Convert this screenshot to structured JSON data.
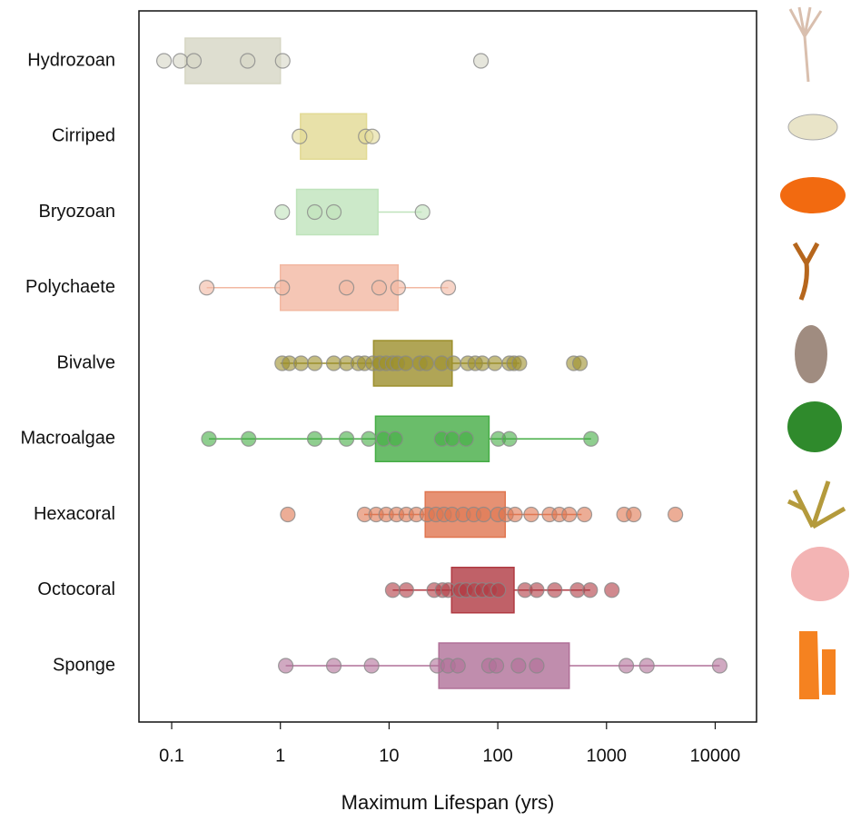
{
  "chart_data": {
    "type": "boxplot",
    "xlabel": "Maximum Lifespan (yrs)",
    "xscale": "log",
    "xlim": [
      0.05,
      24000
    ],
    "xticks": [
      0.1,
      1,
      10,
      100,
      1000,
      10000
    ],
    "categories": [
      "Hydrozoan",
      "Cirriped",
      "Bryozoan",
      "Polychaete",
      "Bivalve",
      "Macroalgae",
      "Hexacoral",
      "Octocoral",
      "Sponge"
    ],
    "colors": [
      "#d6d6c4",
      "#e2da94",
      "#bfe3bb",
      "#f2b8a2",
      "#9c8f2c",
      "#45ad45",
      "#e07650",
      "#b03a42",
      "#b07098"
    ],
    "boxes": [
      {
        "q1": 0.133,
        "q3": 1.0
      },
      {
        "q1": 1.53,
        "q3": 6.2
      },
      {
        "q1": 1.41,
        "q3": 7.9,
        "high": 20
      },
      {
        "low": 0.21,
        "q1": 1.0,
        "q3": 12.1,
        "high": 35
      },
      {
        "low": 1.0,
        "q1": 7.2,
        "q3": 38,
        "high": 158
      },
      {
        "low": 0.22,
        "q1": 7.5,
        "q3": 83,
        "high": 720
      },
      {
        "low": 5.9,
        "q1": 21.5,
        "q3": 117,
        "high": 590
      },
      {
        "low": 10.8,
        "q1": 37.6,
        "q3": 141,
        "high": 707
      },
      {
        "low": 1.12,
        "q1": 28.7,
        "q3": 454,
        "high": 11000
      }
    ],
    "points": [
      [
        0.085,
        0.12,
        0.16,
        0.5,
        1.05,
        70
      ],
      [
        1.5,
        6.1,
        7.0
      ],
      [
        1.04,
        2.07,
        3.1,
        20.3
      ],
      [
        0.21,
        1.04,
        4.06,
        8.1,
        12.1,
        35
      ],
      [
        1.04,
        1.21,
        1.55,
        2.07,
        3.1,
        4.06,
        5.2,
        5.95,
        7.1,
        8.2,
        9.4,
        10.8,
        11.9,
        14.2,
        19.2,
        22,
        30.5,
        39,
        53,
        62,
        72,
        94,
        128,
        141,
        158,
        500,
        570
      ],
      [
        0.22,
        0.51,
        2.07,
        4.06,
        6.5,
        8.9,
        11.4,
        30.5,
        38,
        51,
        101,
        128,
        720
      ],
      [
        1.17,
        5.95,
        7.6,
        9.4,
        11.7,
        14.4,
        17.8,
        22.4,
        27,
        32,
        38,
        48,
        60,
        74,
        100,
        119,
        144,
        203,
        299,
        368,
        454,
        627,
        1450,
        1780,
        4300
      ],
      [
        10.8,
        14.4,
        26,
        31,
        35,
        45,
        51,
        61,
        72,
        85,
        101,
        178,
        228,
        334,
        541,
        707,
        1120
      ],
      [
        1.12,
        3.1,
        6.9,
        27.7,
        34.8,
        43,
        83,
        97,
        155,
        228,
        1520,
        2350,
        11000
      ]
    ]
  }
}
